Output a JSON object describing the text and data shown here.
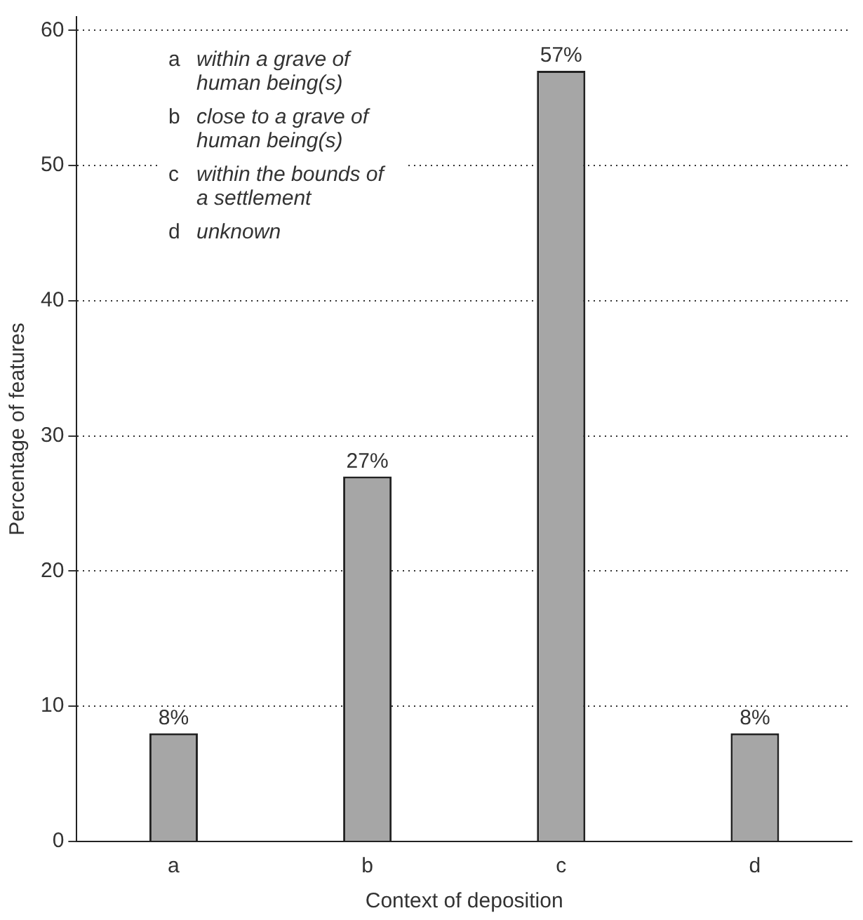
{
  "chart_data": {
    "type": "bar",
    "xlabel": "Context of deposition",
    "ylabel": "Percentage of features",
    "categories": [
      "a",
      "b",
      "c",
      "d"
    ],
    "values": [
      8,
      27,
      57,
      8
    ],
    "value_labels": [
      "8%",
      "27%",
      "57%",
      "8%"
    ],
    "color": "#a6a6a6",
    "ylim": [
      0,
      61
    ],
    "yticks": [
      0,
      10,
      20,
      30,
      40,
      50,
      60
    ],
    "grid": "y",
    "legend": false,
    "annotations": [
      "a within a grave of human being(s)",
      "b close to a grave of human being(s)",
      "c within the bounds of a settlement",
      "d unknown"
    ]
  }
}
